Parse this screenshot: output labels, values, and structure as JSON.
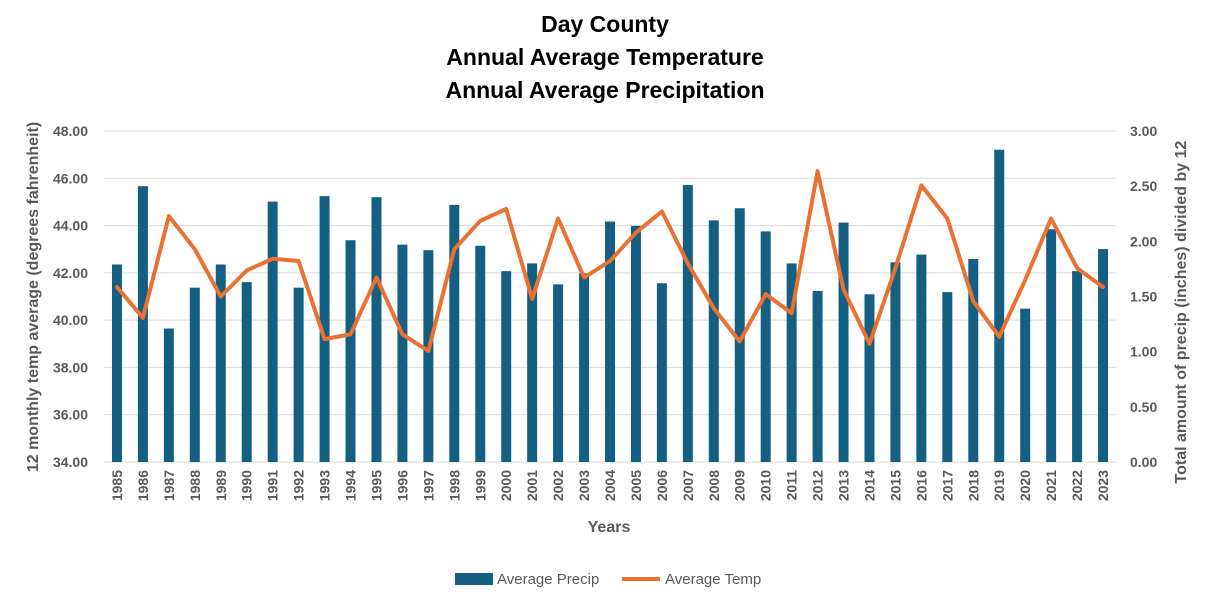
{
  "chart_data": {
    "type": "bar",
    "title_lines": [
      "Day County",
      "Annual Average Temperature",
      "Annual Average Precipitation"
    ],
    "xlabel": "Years",
    "ylabel": "12 monthly temp average (degrees fahrenheit)",
    "y2label": "Total amount of precip (inches) divided by 12",
    "ylim": [
      34,
      48
    ],
    "y2lim": [
      0,
      3
    ],
    "yticks": [
      "34.00",
      "36.00",
      "38.00",
      "40.00",
      "42.00",
      "44.00",
      "46.00",
      "48.00"
    ],
    "y2ticks": [
      "0.00",
      "0.50",
      "1.00",
      "1.50",
      "2.00",
      "2.50",
      "3.00"
    ],
    "grid": true,
    "legend_position": "bottom",
    "categories": [
      "1985",
      "1986",
      "1987",
      "1988",
      "1989",
      "1990",
      "1991",
      "1992",
      "1993",
      "1994",
      "1995",
      "1996",
      "1997",
      "1998",
      "1999",
      "2000",
      "2001",
      "2002",
      "2003",
      "2004",
      "2005",
      "2006",
      "2007",
      "2008",
      "2009",
      "2010",
      "2011",
      "2012",
      "2013",
      "2014",
      "2015",
      "2016",
      "2017",
      "2018",
      "2019",
      "2020",
      "2021",
      "2022",
      "2023"
    ],
    "series": [
      {
        "name": "Average Precip",
        "type": "bar",
        "axis": "right",
        "color": "#156082",
        "values": [
          1.79,
          2.5,
          1.21,
          1.58,
          1.79,
          1.63,
          2.36,
          1.58,
          2.41,
          2.01,
          2.4,
          1.97,
          1.92,
          2.33,
          1.96,
          1.73,
          1.8,
          1.61,
          1.71,
          2.18,
          2.14,
          1.62,
          2.51,
          2.19,
          2.3,
          2.09,
          1.8,
          1.55,
          2.17,
          1.52,
          1.81,
          1.88,
          1.54,
          1.84,
          2.83,
          1.39,
          2.11,
          1.73,
          1.93
        ]
      },
      {
        "name": "Average Temp",
        "type": "line",
        "axis": "left",
        "color": "#E97132",
        "values": [
          41.4,
          40.1,
          44.4,
          43.0,
          41.0,
          42.1,
          42.6,
          42.5,
          39.2,
          39.4,
          41.8,
          39.4,
          38.7,
          43.0,
          44.2,
          44.7,
          40.9,
          44.3,
          41.8,
          42.5,
          43.7,
          44.6,
          42.4,
          40.5,
          39.1,
          41.1,
          40.3,
          46.3,
          41.3,
          39.0,
          42.2,
          45.7,
          44.3,
          40.8,
          39.3,
          41.7,
          44.3,
          42.2,
          41.4
        ]
      }
    ]
  }
}
